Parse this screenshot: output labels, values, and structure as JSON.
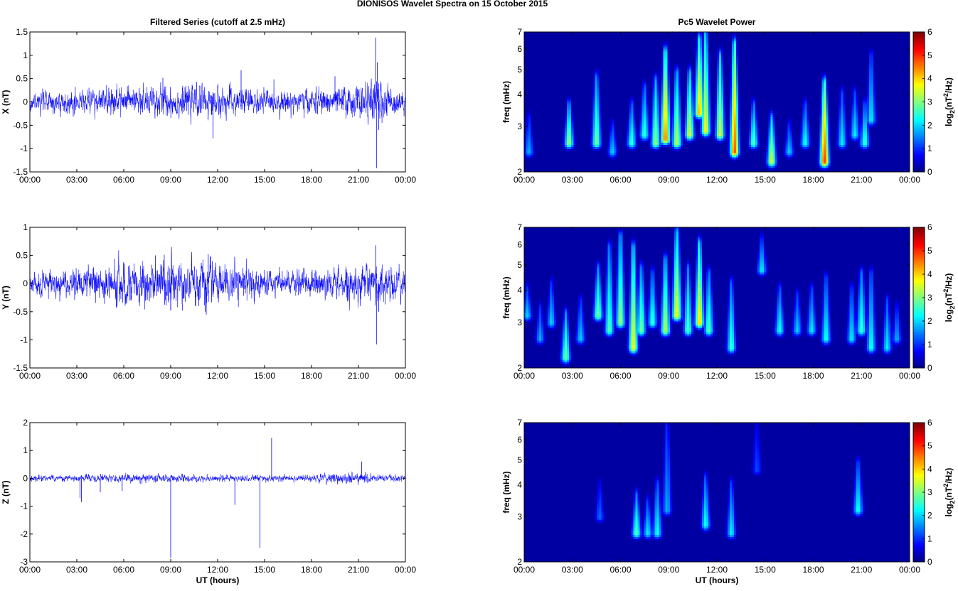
{
  "figure": {
    "title": "DIONISOS Wavelet Spectra on 15 October   2015"
  },
  "chart_data": [
    {
      "type": "line",
      "id": "x-series",
      "title": "Filtered Series (cutoff at 2.5 mHz)",
      "ylabel": "X (nT)",
      "xlabel": "",
      "xlim": [
        0,
        24
      ],
      "ylim": [
        -1.5,
        1.5
      ],
      "yticks": [
        -1.5,
        -1,
        -0.5,
        0,
        0.5,
        1,
        1.5
      ],
      "ytick_labels": [
        "-1.5",
        "-1",
        "-0.5",
        "0",
        "0.5",
        "1",
        "1.5"
      ],
      "xtick_labels": [
        "00:00",
        "03:00",
        "06:00",
        "09:00",
        "12:00",
        "15:00",
        "18:00",
        "21:00",
        "00:00"
      ],
      "color": "#0000ff",
      "noise_profile": [
        [
          0,
          0.09
        ],
        [
          4,
          0.13
        ],
        [
          8,
          0.16
        ],
        [
          12,
          0.15
        ],
        [
          16,
          0.11
        ],
        [
          20,
          0.14
        ],
        [
          22.2,
          0.2
        ],
        [
          24,
          0.1
        ]
      ],
      "spikes": [
        [
          13.5,
          0.68
        ],
        [
          11.7,
          -0.78
        ],
        [
          22.1,
          1.38
        ],
        [
          22.15,
          -1.42
        ],
        [
          22.2,
          0.85
        ],
        [
          22.3,
          -0.6
        ],
        [
          19.5,
          0.55
        ],
        [
          8.5,
          0.52
        ]
      ]
    },
    {
      "type": "line",
      "id": "y-series",
      "title": "",
      "ylabel": "Y (nT)",
      "xlabel": "",
      "xlim": [
        0,
        24
      ],
      "ylim": [
        -1.5,
        1
      ],
      "yticks": [
        -1.5,
        -1,
        -0.5,
        0,
        0.5,
        1
      ],
      "ytick_labels": [
        "-1.5",
        "-1",
        "-0.5",
        "0",
        "0.5",
        "1"
      ],
      "xtick_labels": [
        "00:00",
        "03:00",
        "06:00",
        "09:00",
        "12:00",
        "15:00",
        "18:00",
        "21:00",
        "00:00"
      ],
      "color": "#0000ff",
      "noise_profile": [
        [
          0,
          0.1
        ],
        [
          4,
          0.13
        ],
        [
          6,
          0.17
        ],
        [
          9,
          0.18
        ],
        [
          12,
          0.16
        ],
        [
          16,
          0.1
        ],
        [
          20,
          0.13
        ],
        [
          22.2,
          0.18
        ],
        [
          24,
          0.11
        ]
      ],
      "spikes": [
        [
          22.1,
          0.68
        ],
        [
          22.15,
          -1.08
        ],
        [
          9.05,
          0.65
        ],
        [
          11.4,
          0.52
        ],
        [
          9,
          -0.48
        ],
        [
          11.2,
          -0.5
        ],
        [
          22.3,
          -0.5
        ]
      ]
    },
    {
      "type": "line",
      "id": "z-series",
      "title": "",
      "ylabel": "Z (nT)",
      "xlabel": "UT (hours)",
      "xlim": [
        0,
        24
      ],
      "ylim": [
        -3,
        2
      ],
      "yticks": [
        -3,
        -2,
        -1,
        0,
        1,
        2
      ],
      "ytick_labels": [
        "-3",
        "-2",
        "-1",
        "0",
        "1",
        "2"
      ],
      "xtick_labels": [
        "00:00",
        "03:00",
        "06:00",
        "09:00",
        "12:00",
        "15:00",
        "18:00",
        "21:00",
        "00:00"
      ],
      "color": "#0000ff",
      "noise_profile": [
        [
          0,
          0.05
        ],
        [
          6,
          0.07
        ],
        [
          12,
          0.06
        ],
        [
          18,
          0.06
        ],
        [
          20.5,
          0.1
        ],
        [
          22,
          0.07
        ],
        [
          24,
          0.05
        ]
      ],
      "spikes": [
        [
          9.0,
          -2.85
        ],
        [
          14.7,
          -2.5
        ],
        [
          15.45,
          1.45
        ],
        [
          13.1,
          -0.95
        ],
        [
          3.3,
          -0.85
        ],
        [
          3.2,
          -0.7
        ],
        [
          4.5,
          -0.5
        ],
        [
          5.9,
          -0.45
        ],
        [
          21.2,
          0.6
        ]
      ]
    },
    {
      "type": "heatmap",
      "id": "x-wavelet",
      "title": "Pc5 Wavelet Power",
      "ylabel": "freq (mHz)",
      "xlabel": "",
      "xlim": [
        0,
        24
      ],
      "ylim": [
        2,
        7
      ],
      "yscale": "log",
      "yticks": [
        2,
        3,
        4,
        5,
        6,
        7
      ],
      "ytick_labels": [
        "2",
        "3",
        "4",
        "5",
        "6",
        "7"
      ],
      "xtick_labels": [
        "00:00",
        "03:00",
        "06:00",
        "09:00",
        "12:00",
        "15:00",
        "18:00",
        "21:00",
        "00:00"
      ],
      "colormap": "jet",
      "colorbar": {
        "label": "log",
        "sub": "2",
        "unit": "(nT",
        "sup": "2",
        "unit_end": "/Hz)",
        "range": [
          0,
          6
        ],
        "ticks": [
          "0",
          "1",
          "2",
          "3",
          "4",
          "5",
          "6"
        ]
      },
      "bursts": [
        [
          0.3,
          2.4,
          3.2,
          1.8
        ],
        [
          2.8,
          2.6,
          3.6,
          3.2
        ],
        [
          4.5,
          2.6,
          4.6,
          3.0
        ],
        [
          5.5,
          2.4,
          3.0,
          2.0
        ],
        [
          6.7,
          2.6,
          3.6,
          2.6
        ],
        [
          7.5,
          2.8,
          4.2,
          2.6
        ],
        [
          8.2,
          2.6,
          4.5,
          3.2
        ],
        [
          8.8,
          2.7,
          5.8,
          4.6
        ],
        [
          9.5,
          2.6,
          4.8,
          3.4
        ],
        [
          10.3,
          2.8,
          4.8,
          3.6
        ],
        [
          10.9,
          3.4,
          6.5,
          4.2
        ],
        [
          11.3,
          2.9,
          6.8,
          3.8
        ],
        [
          12.2,
          2.8,
          5.6,
          3.6
        ],
        [
          13.1,
          2.4,
          6.2,
          4.8
        ],
        [
          14.3,
          2.6,
          3.6,
          2.8
        ],
        [
          15.4,
          2.2,
          3.2,
          3.6
        ],
        [
          16.5,
          2.4,
          3.0,
          2.0
        ],
        [
          17.5,
          2.6,
          3.6,
          2.4
        ],
        [
          18.7,
          2.2,
          4.4,
          5.0
        ],
        [
          19.8,
          2.6,
          4.0,
          2.2
        ],
        [
          20.6,
          2.8,
          4.0,
          2.2
        ],
        [
          21.2,
          2.6,
          3.6,
          2.6
        ],
        [
          21.6,
          3.2,
          5.6,
          2.2
        ]
      ]
    },
    {
      "type": "heatmap",
      "id": "y-wavelet",
      "title": "",
      "ylabel": "freq (mHz)",
      "xlabel": "",
      "xlim": [
        0,
        24
      ],
      "ylim": [
        2,
        7
      ],
      "yscale": "log",
      "yticks": [
        2,
        3,
        4,
        5,
        6,
        7
      ],
      "ytick_labels": [
        "2",
        "3",
        "4",
        "5",
        "6",
        "7"
      ],
      "xtick_labels": [
        "00:00",
        "03:00",
        "06:00",
        "09:00",
        "12:00",
        "15:00",
        "18:00",
        "21:00",
        "00:00"
      ],
      "colormap": "jet",
      "colorbar": {
        "label": "log",
        "sub": "2",
        "unit": "(nT",
        "sup": "2",
        "unit_end": "/Hz)",
        "range": [
          0,
          6
        ],
        "ticks": [
          "0",
          "1",
          "2",
          "3",
          "4",
          "5",
          "6"
        ]
      },
      "bursts": [
        [
          0.2,
          3.2,
          4.0,
          2.0
        ],
        [
          1.0,
          2.6,
          3.4,
          1.8
        ],
        [
          1.7,
          3.0,
          4.2,
          2.0
        ],
        [
          2.6,
          2.2,
          3.2,
          3.0
        ],
        [
          3.5,
          2.6,
          3.6,
          2.0
        ],
        [
          4.6,
          3.2,
          4.8,
          3.0
        ],
        [
          5.3,
          2.8,
          5.8,
          2.8
        ],
        [
          6.0,
          3.0,
          6.4,
          3.2
        ],
        [
          6.8,
          2.4,
          5.8,
          3.8
        ],
        [
          7.3,
          2.8,
          4.8,
          3.0
        ],
        [
          8.0,
          3.0,
          4.6,
          2.6
        ],
        [
          8.8,
          2.8,
          5.2,
          3.4
        ],
        [
          9.5,
          3.2,
          6.6,
          3.8
        ],
        [
          10.2,
          2.8,
          4.8,
          2.8
        ],
        [
          10.9,
          3.0,
          6.0,
          4.0
        ],
        [
          11.5,
          2.8,
          4.6,
          2.8
        ],
        [
          12.9,
          2.4,
          4.2,
          2.6
        ],
        [
          14.8,
          4.8,
          6.2,
          2.2
        ],
        [
          15.9,
          2.8,
          4.0,
          2.4
        ],
        [
          17.0,
          2.8,
          3.8,
          2.0
        ],
        [
          17.9,
          2.8,
          4.0,
          2.2
        ],
        [
          18.8,
          2.6,
          4.4,
          2.4
        ],
        [
          20.4,
          2.6,
          4.0,
          2.2
        ],
        [
          21.0,
          2.8,
          4.6,
          2.6
        ],
        [
          21.6,
          2.4,
          4.6,
          2.4
        ],
        [
          22.6,
          2.4,
          3.6,
          2.2
        ],
        [
          23.2,
          2.6,
          3.4,
          1.8
        ]
      ]
    },
    {
      "type": "heatmap",
      "id": "z-wavelet",
      "title": "",
      "ylabel": "freq (mHz)",
      "xlabel": "UT (hours)",
      "xlim": [
        0,
        24
      ],
      "ylim": [
        2,
        7
      ],
      "yscale": "log",
      "yticks": [
        2,
        3,
        4,
        5,
        6,
        7
      ],
      "ytick_labels": [
        "2",
        "3",
        "4",
        "5",
        "6",
        "7"
      ],
      "xtick_labels": [
        "00:00",
        "03:00",
        "06:00",
        "09:00",
        "12:00",
        "15:00",
        "18:00",
        "21:00",
        "00:00"
      ],
      "colormap": "jet",
      "colorbar": {
        "label": "log",
        "sub": "2",
        "unit": "(nT",
        "sup": "2",
        "unit_end": "/Hz)",
        "range": [
          0,
          6
        ],
        "ticks": [
          "0",
          "1",
          "2",
          "3",
          "4",
          "5",
          "6"
        ]
      },
      "bursts": [
        [
          4.7,
          3.0,
          4.0,
          1.4
        ],
        [
          7.0,
          2.6,
          3.6,
          2.8
        ],
        [
          7.7,
          2.6,
          3.4,
          2.2
        ],
        [
          8.3,
          2.6,
          4.0,
          2.4
        ],
        [
          8.9,
          3.2,
          6.8,
          1.8
        ],
        [
          11.3,
          2.8,
          4.2,
          2.4
        ],
        [
          12.9,
          2.6,
          4.0,
          2.2
        ],
        [
          14.5,
          4.6,
          7.0,
          1.2
        ],
        [
          20.8,
          3.2,
          4.8,
          2.4
        ]
      ]
    }
  ]
}
